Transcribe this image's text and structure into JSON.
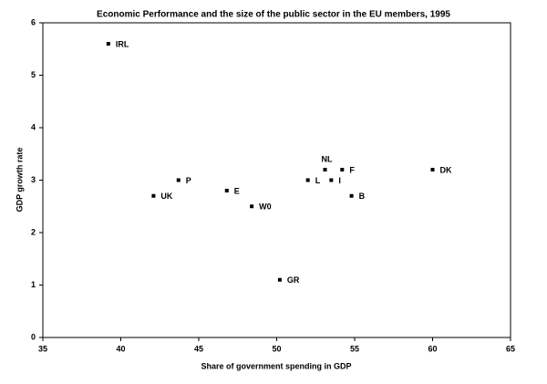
{
  "chart_data": {
    "type": "scatter",
    "title": "Economic Performance and the size of the public sector in the EU members, 1995",
    "x_label": "Share of government spending in GDP",
    "y_label": "GDP growth rate",
    "labels": [
      "IRL",
      "UK",
      "P",
      "E",
      "W0",
      "GR",
      "L",
      "NL",
      "I",
      "F",
      "B",
      "DK"
    ],
    "x": [
      39.2,
      42.1,
      43.7,
      46.8,
      48.4,
      50.2,
      52.0,
      53.1,
      53.5,
      54.2,
      54.8,
      60.0
    ],
    "values": [
      5.6,
      2.7,
      3.0,
      2.8,
      2.5,
      1.1,
      3.0,
      3.2,
      3.0,
      3.2,
      2.7,
      3.2
    ],
    "color": "#000000",
    "xlim": [
      35,
      65
    ],
    "xticks": [
      35,
      40,
      45,
      50,
      55,
      60,
      65
    ],
    "ylim": [
      0,
      6
    ],
    "yticks": [
      0,
      1,
      2,
      3,
      4,
      5,
      6
    ],
    "grid": false
  }
}
